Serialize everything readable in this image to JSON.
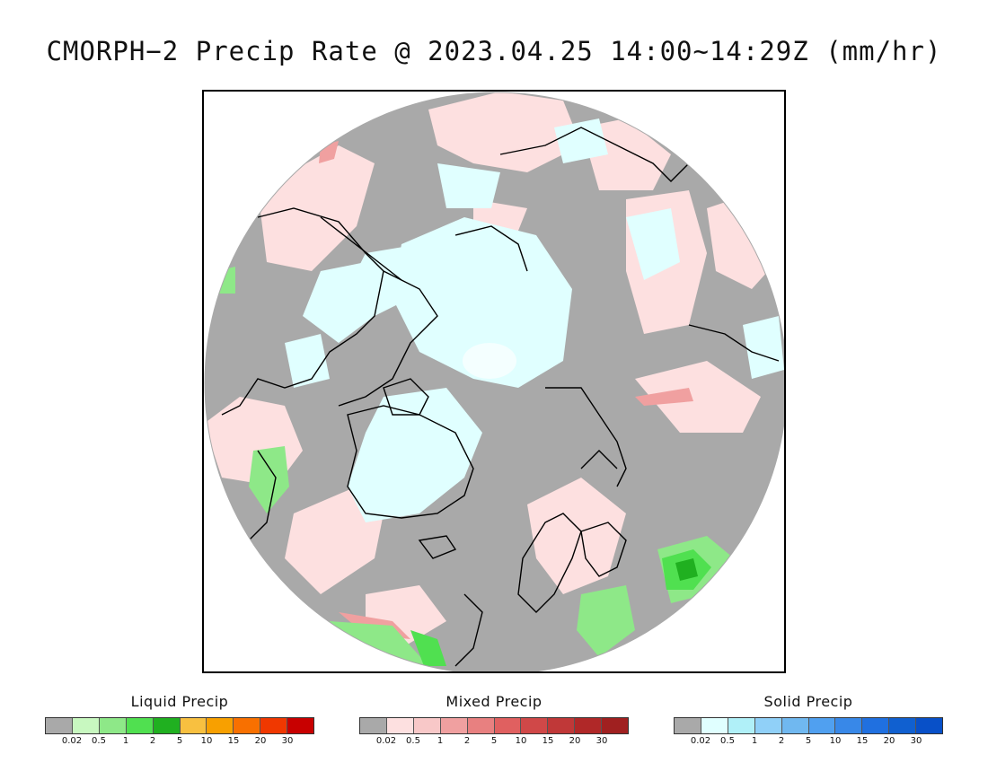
{
  "title": "CMORPH−2 Precip Rate @ 2023.04.25 14:00~14:29Z (mm/hr)",
  "map": {
    "colors": {
      "no_precip": "#a9a9a9",
      "outside": "#ffffff",
      "coastline": "#000000"
    }
  },
  "legends": [
    {
      "title": "Liquid Precip",
      "colors": [
        "#a9a9a9",
        "#c8f8c0",
        "#8ee888",
        "#50e050",
        "#20b020",
        "#f8c040",
        "#f8a000",
        "#f87000",
        "#f03800",
        "#c80000"
      ],
      "ticks": [
        "0.02",
        "0.5",
        "1",
        "2",
        "5",
        "10",
        "15",
        "20",
        "30"
      ]
    },
    {
      "title": "Mixed Precip",
      "colors": [
        "#a9a9a9",
        "#fde0e0",
        "#f8c8c8",
        "#f0a0a0",
        "#e88080",
        "#e06060",
        "#d04848",
        "#c03838",
        "#b02828",
        "#a02020"
      ],
      "ticks": [
        "0.02",
        "0.5",
        "1",
        "2",
        "5",
        "10",
        "15",
        "20",
        "30"
      ]
    },
    {
      "title": "Solid Precip",
      "colors": [
        "#a9a9a9",
        "#e0ffff",
        "#b0f0f8",
        "#90d0f8",
        "#70b8f0",
        "#50a0f0",
        "#3888e8",
        "#2070e0",
        "#1060d0",
        "#0850c8"
      ],
      "ticks": [
        "0.02",
        "0.5",
        "1",
        "2",
        "5",
        "10",
        "15",
        "20",
        "30"
      ]
    }
  ]
}
